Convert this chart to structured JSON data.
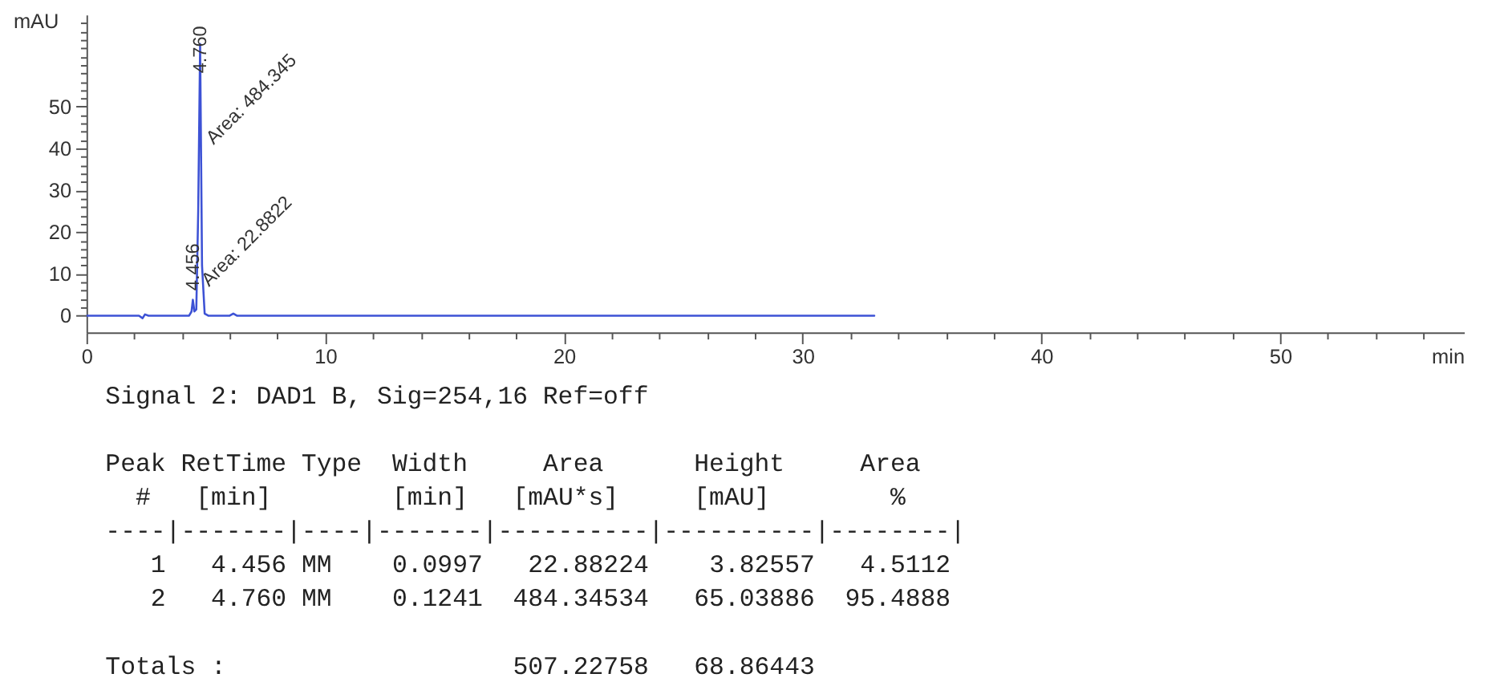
{
  "chart_data": {
    "type": "line",
    "x": [
      0,
      2.2,
      2.35,
      2.45,
      2.6,
      4.3,
      4.4,
      4.456,
      4.52,
      4.6,
      4.68,
      4.76,
      4.84,
      4.95,
      5.1,
      6.0,
      6.15,
      6.3,
      33.0
    ],
    "series": [
      {
        "color": "#3d52d5",
        "values": [
          0,
          0,
          -0.6,
          0.3,
          0,
          0,
          1.0,
          3.8,
          1.0,
          1.5,
          25,
          65,
          12,
          0.5,
          0,
          0,
          0.5,
          0,
          0
        ]
      }
    ],
    "xlabel": "min",
    "ylabel": "mAU",
    "xlim": [
      0,
      57.7
    ],
    "ylim": [
      -4,
      72
    ],
    "xticks": [
      0,
      {
        "value": 2,
        "label": null
      },
      {
        "value": 4,
        "label": null
      },
      {
        "value": 6,
        "label": null
      },
      {
        "value": 8,
        "label": null
      },
      10,
      {
        "value": 12,
        "label": null
      },
      {
        "value": 14,
        "label": null
      },
      {
        "value": 16,
        "label": null
      },
      {
        "value": 18,
        "label": null
      },
      20,
      {
        "value": 22,
        "label": null
      },
      {
        "value": 24,
        "label": null
      },
      {
        "value": 26,
        "label": null
      },
      {
        "value": 28,
        "label": null
      },
      30,
      {
        "value": 32,
        "label": null
      },
      {
        "value": 34,
        "label": null
      },
      {
        "value": 36,
        "label": null
      },
      {
        "value": 38,
        "label": null
      },
      40,
      {
        "value": 42,
        "label": null
      },
      {
        "value": 44,
        "label": null
      },
      {
        "value": 46,
        "label": null
      },
      {
        "value": 48,
        "label": null
      },
      50,
      {
        "value": 52,
        "label": null
      },
      {
        "value": 54,
        "label": null
      },
      {
        "value": 56,
        "label": null
      }
    ],
    "yticks": [
      0,
      {
        "value": 2,
        "label": null
      },
      {
        "value": 4,
        "label": null
      },
      {
        "value": 6,
        "label": null
      },
      {
        "value": 8,
        "label": null
      },
      10,
      {
        "value": 12,
        "label": null
      },
      {
        "value": 14,
        "label": null
      },
      {
        "value": 16,
        "label": null
      },
      {
        "value": 18,
        "label": null
      },
      20,
      {
        "value": 22,
        "label": null
      },
      {
        "value": 24,
        "label": null
      },
      {
        "value": 26,
        "label": null
      },
      {
        "value": 28,
        "label": null
      },
      30,
      {
        "value": 32,
        "label": null
      },
      {
        "value": 34,
        "label": null
      },
      {
        "value": 36,
        "label": null
      },
      {
        "value": 38,
        "label": null
      },
      40,
      {
        "value": 42,
        "label": null
      },
      {
        "value": 44,
        "label": null
      },
      {
        "value": 46,
        "label": null
      },
      {
        "value": 48,
        "label": null
      },
      50,
      {
        "value": 52,
        "label": null
      },
      {
        "value": 54,
        "label": null
      },
      {
        "value": 56,
        "label": null
      },
      {
        "value": 58,
        "label": null
      },
      {
        "value": 60,
        "label": null
      },
      {
        "value": 62,
        "label": null
      },
      {
        "value": 64,
        "label": null
      },
      {
        "value": 66,
        "label": null
      },
      {
        "value": 68,
        "label": null
      },
      {
        "value": 70,
        "label": null
      }
    ],
    "annotations": [
      {
        "text": "4.760",
        "x": 4.76,
        "y": 58
      },
      {
        "text": "Area: 484.345",
        "x": 4.81,
        "y": 40
      },
      {
        "text": "4.456",
        "x": 4.456,
        "y": 6
      },
      {
        "text": "Area: 22.8822",
        "x": 4.62,
        "y": 6
      },
      "Signal 2: DAD1 B, Sig=254,16 Ref=off",
      "Peak RetTime Type  Width     Area      Height     Area\n  #   [min]        [min]   [mAU*s]     [mAU]        %\n----|-------|----|-------|----------|----------|--------|\n   1   4.456 MM    0.0997   22.88224    3.82557   4.5112\n   2   4.760 MM    0.1241  484.34534   65.03886  95.4888",
      "Totals :                   507.22758   68.86443"
    ]
  }
}
